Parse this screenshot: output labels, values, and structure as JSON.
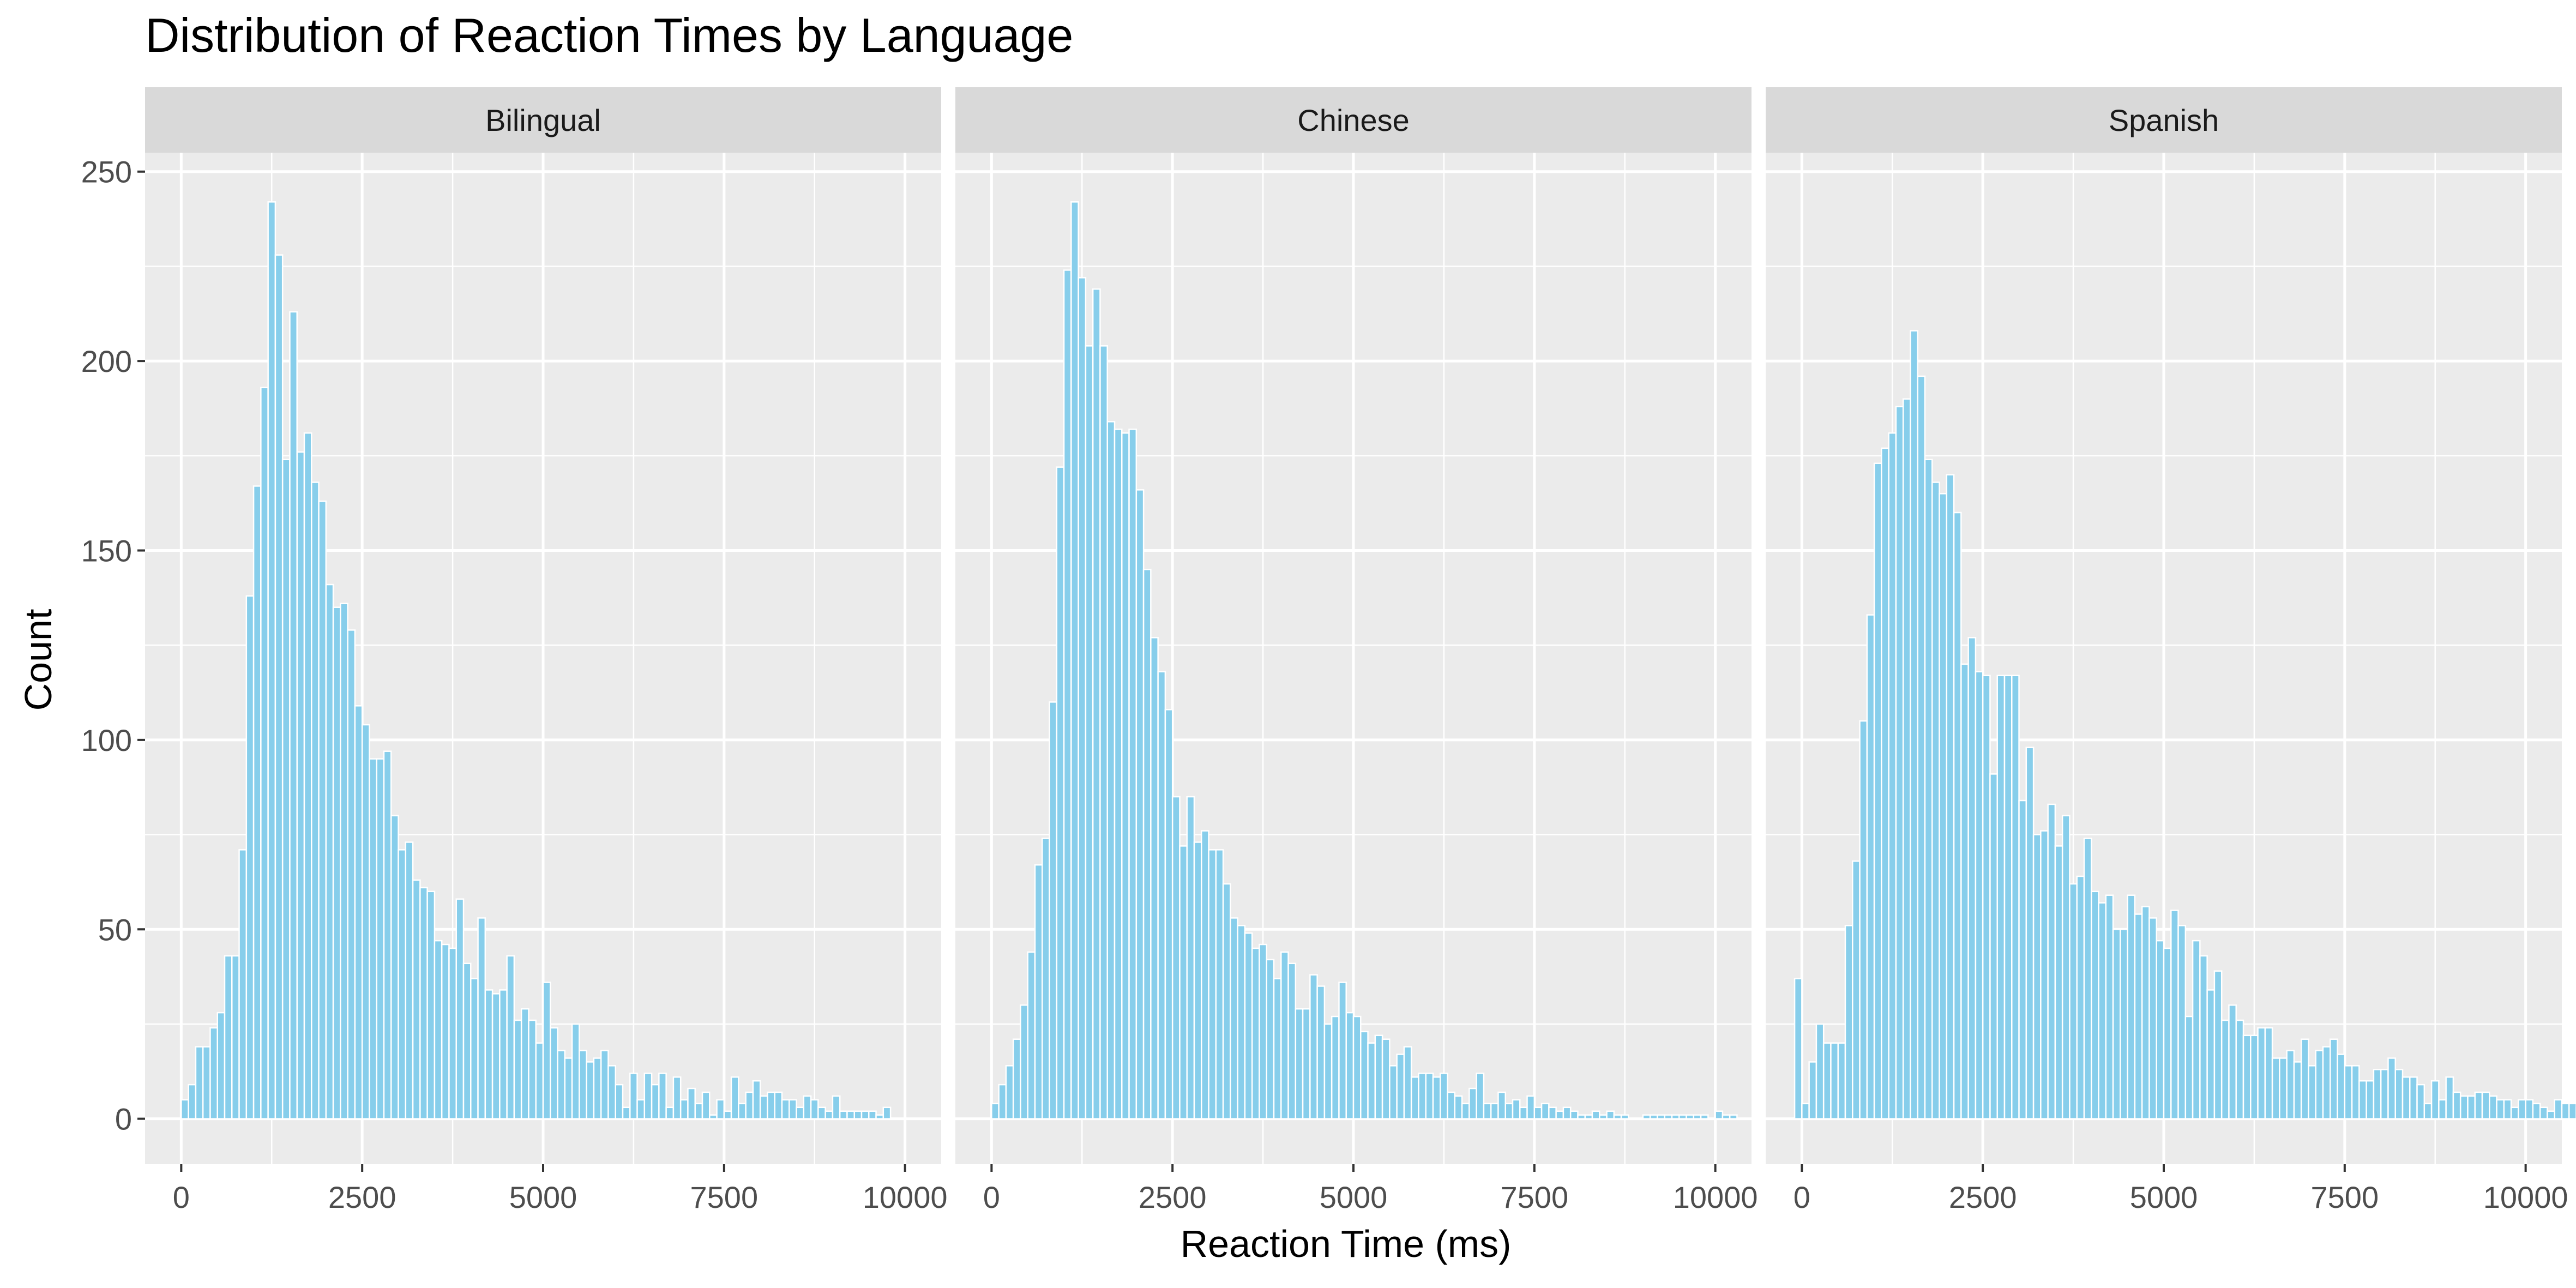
{
  "chart_data": {
    "type": "bar",
    "subtype": "faceted-histogram",
    "title": "Distribution of Reaction Times by Language",
    "xlabel": "Reaction Time (ms)",
    "ylabel": "Count",
    "xlim": [
      -500,
      10500
    ],
    "ylim": [
      -12,
      255
    ],
    "x_ticks": [
      0,
      2500,
      5000,
      7500,
      10000
    ],
    "y_ticks": [
      0,
      50,
      100,
      150,
      200,
      250
    ],
    "bin_width": 100,
    "bin_start": 0,
    "grid": true,
    "bar_color": "#87CEEB",
    "bar_outline": "#FFFFFF",
    "panel_background": "#EBEBEB",
    "strip_background": "#D9D9D9",
    "facets": [
      {
        "label": "Bilingual",
        "counts": [
          5,
          9,
          19,
          19,
          24,
          28,
          43,
          43,
          71,
          138,
          167,
          193,
          242,
          228,
          174,
          213,
          176,
          181,
          168,
          163,
          141,
          135,
          136,
          129,
          109,
          104,
          95,
          95,
          97,
          80,
          71,
          73,
          63,
          61,
          60,
          47,
          46,
          45,
          58,
          41,
          37,
          53,
          34,
          33,
          34,
          43,
          26,
          29,
          26,
          20,
          36,
          24,
          18,
          16,
          25,
          18,
          15,
          16,
          18,
          14,
          9,
          3,
          12,
          5,
          12,
          9,
          12,
          3,
          11,
          5,
          8,
          4,
          7,
          1,
          5,
          2,
          11,
          4,
          7,
          10,
          6,
          7,
          7,
          5,
          5,
          3,
          6,
          5,
          3,
          2,
          6,
          2,
          2,
          2,
          2,
          2,
          1,
          3,
          0,
          0,
          0,
          0,
          0,
          0,
          0,
          0
        ],
        "counts_start": 0
      },
      {
        "label": "Chinese",
        "counts": [
          4,
          9,
          14,
          21,
          30,
          44,
          67,
          74,
          110,
          172,
          224,
          242,
          222,
          204,
          219,
          204,
          184,
          182,
          181,
          182,
          166,
          145,
          127,
          118,
          108,
          85,
          72,
          85,
          73,
          76,
          71,
          71,
          62,
          53,
          51,
          49,
          45,
          46,
          42,
          37,
          44,
          41,
          29,
          29,
          38,
          35,
          25,
          27,
          36,
          28,
          27,
          23,
          20,
          22,
          21,
          14,
          17,
          19,
          11,
          12,
          12,
          11,
          12,
          7,
          6,
          4,
          8,
          12,
          4,
          4,
          7,
          4,
          5,
          3,
          6,
          3,
          4,
          3,
          2,
          3,
          2,
          1,
          1,
          2,
          1,
          2,
          1,
          1,
          0,
          0,
          1,
          1,
          1,
          1,
          1,
          1,
          1,
          1,
          1,
          0,
          2,
          1,
          1,
          0,
          0,
          0
        ],
        "counts_start": 0
      },
      {
        "label": "Spanish",
        "counts": [
          37,
          4,
          15,
          25,
          20,
          20,
          20,
          51,
          68,
          105,
          133,
          173,
          177,
          181,
          188,
          190,
          208,
          196,
          174,
          168,
          165,
          170,
          160,
          120,
          127,
          118,
          117,
          91,
          117,
          117,
          117,
          84,
          98,
          75,
          76,
          83,
          72,
          80,
          62,
          64,
          74,
          60,
          57,
          59,
          50,
          50,
          59,
          54,
          56,
          53,
          47,
          45,
          55,
          51,
          27,
          47,
          43,
          34,
          39,
          26,
          30,
          26,
          22,
          22,
          24,
          24,
          16,
          16,
          18,
          15,
          21,
          14,
          18,
          19,
          21,
          17,
          14,
          14,
          10,
          10,
          13,
          13,
          16,
          13,
          11,
          11,
          9,
          4,
          10,
          5,
          11,
          7,
          6,
          6,
          7,
          7,
          6,
          5,
          5,
          3,
          5,
          5,
          4,
          3,
          2,
          5,
          4,
          4,
          3,
          3
        ],
        "counts_start": -100
      }
    ]
  }
}
